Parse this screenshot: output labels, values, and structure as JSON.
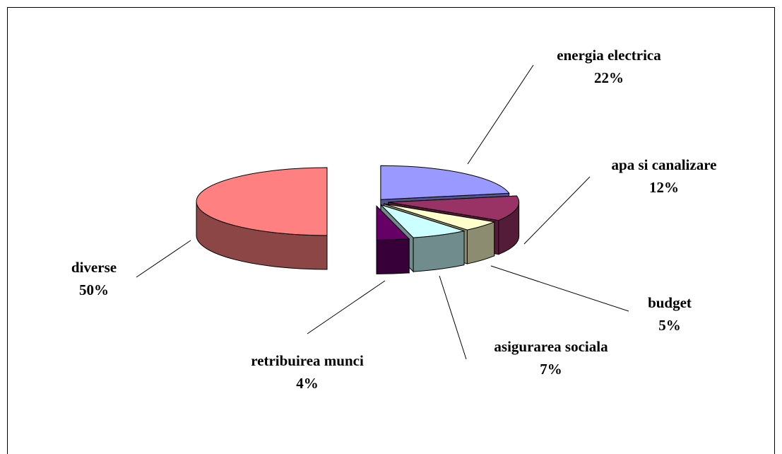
{
  "chart_data": {
    "type": "pie3d",
    "categories": [
      "energia electrica",
      "apa si canalizare",
      "budget",
      "asigurarea sociala",
      "retribuirea munci",
      "diverse"
    ],
    "values": [
      22,
      12,
      5,
      7,
      4,
      50
    ],
    "value_labels": [
      "22%",
      "12%",
      "5%",
      "7%",
      "4%",
      "50%"
    ],
    "colors": [
      "#9999ff",
      "#993366",
      "#ffffcc",
      "#ccffff",
      "#660066",
      "#ff8080"
    ]
  }
}
